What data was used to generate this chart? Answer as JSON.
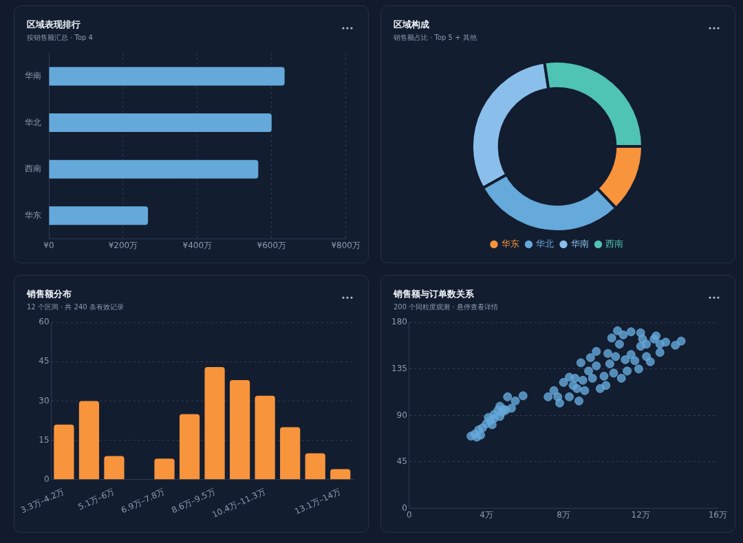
{
  "chart_data": [
    {
      "type": "bar",
      "title": "区域表现排行",
      "subtitle": "按销售额汇总 · Top 4",
      "orientation": "horizontal",
      "categories": [
        "华南",
        "华北",
        "西南",
        "华东"
      ],
      "values": [
        635,
        600,
        564,
        267
      ],
      "color": "#65a9db",
      "xlim": [
        0,
        800
      ],
      "xticks": [
        {
          "value": 0,
          "label": "¥0"
        },
        {
          "value": 200,
          "label": "¥200万"
        },
        {
          "value": 400,
          "label": "¥400万"
        },
        {
          "value": 600,
          "label": "¥600万"
        },
        {
          "value": 800,
          "label": "¥800万"
        }
      ],
      "grid": "x"
    },
    {
      "type": "donut",
      "title": "区域构成",
      "subtitle": "销售额占比 · Top 5 + 其他",
      "categories": [
        "华东",
        "华北",
        "华南",
        "西南"
      ],
      "values": [
        12.9,
        29.0,
        30.7,
        27.4
      ],
      "colors": [
        "#f7943c",
        "#66a9db",
        "#8bbfeb",
        "#4fc3b4"
      ],
      "legend": "bottom"
    },
    {
      "type": "bar",
      "title": "销售额分布",
      "subtitle": "12 个区间 · 共 240 条有效记录",
      "categories": [
        "3.3万–4.2万",
        null,
        "5.1万–6万",
        null,
        "6.9万–7.8万",
        null,
        "8.6万–9.5万",
        null,
        "10.4万–11.3万",
        null,
        null,
        "13.1万–14万"
      ],
      "values": [
        21,
        30,
        9,
        0,
        8,
        25,
        43,
        38,
        32,
        20,
        10,
        4
      ],
      "color": "#f7943c",
      "ylim": [
        0,
        60
      ],
      "yticks": [
        0,
        15,
        30,
        45,
        60
      ],
      "grid": "y"
    },
    {
      "type": "scatter",
      "title": "销售额与订单数关系",
      "subtitle": "200 个同粒度观测 · 悬停查看详情",
      "color": "#65a9db",
      "marker": "circle",
      "xlim": [
        0,
        16
      ],
      "xticks": [
        0,
        {
          "value": 4,
          "label": "4万"
        },
        {
          "value": 8,
          "label": "8万"
        },
        {
          "value": 12,
          "label": "12万"
        },
        {
          "value": 16,
          "label": "16万"
        }
      ],
      "ylim": [
        0,
        180
      ],
      "yticks": [
        0,
        45,
        90,
        135,
        180
      ],
      "grid": "y",
      "x": [
        3.2,
        3.5,
        3.4,
        3.7,
        3.6,
        3.8,
        4.0,
        4.2,
        4.3,
        4.4,
        4.7,
        4.8,
        4.6,
        4.9,
        4.7,
        5.0,
        5.1,
        5.3,
        5.5,
        5.9,
        4.1,
        4.4,
        7.2,
        7.5,
        7.7,
        7.8,
        8.0,
        8.3,
        8.3,
        8.5,
        8.6,
        8.8,
        8.9,
        8.7,
        9.0,
        9.1,
        9.3,
        9.4,
        9.5,
        9.7,
        9.7,
        9.9,
        10.1,
        10.2,
        10.3,
        10.4,
        10.5,
        10.6,
        10.7,
        10.8,
        10.9,
        11.0,
        11.1,
        11.2,
        11.3,
        11.5,
        11.5,
        11.7,
        11.9,
        12.0,
        12.0,
        12.1,
        12.3,
        12.3,
        12.5,
        12.7,
        12.8,
        13.0,
        13.0,
        13.3,
        13.8,
        14.1
      ],
      "values": [
        70,
        69,
        72,
        71,
        76,
        78,
        82,
        85,
        81,
        87,
        89,
        93,
        95,
        96,
        99,
        95,
        108,
        97,
        104,
        109,
        88,
        91,
        108,
        114,
        108,
        102,
        122,
        127,
        108,
        119,
        126,
        104,
        141,
        116,
        124,
        114,
        133,
        146,
        126,
        152,
        138,
        116,
        128,
        119,
        150,
        140,
        165,
        131,
        147,
        172,
        159,
        126,
        168,
        144,
        133,
        171,
        149,
        143,
        135,
        170,
        157,
        164,
        159,
        147,
        142,
        164,
        167,
        151,
        159,
        161,
        158,
        162
      ]
    }
  ]
}
